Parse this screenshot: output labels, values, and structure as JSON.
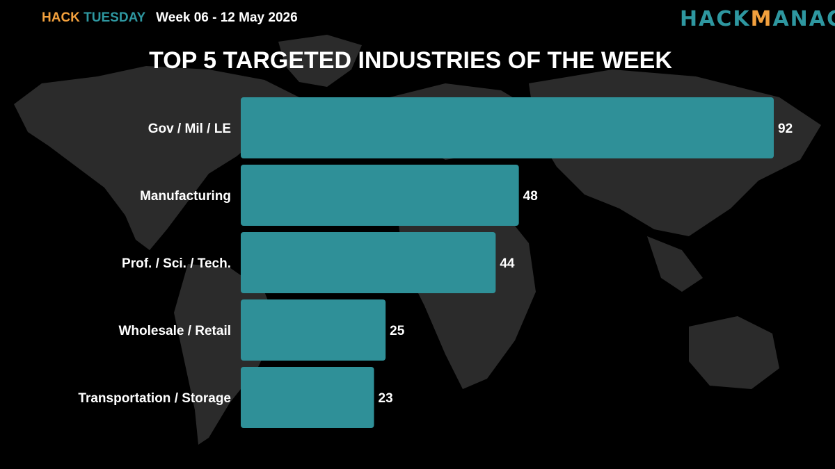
{
  "header": {
    "brand_part1": "HACK",
    "brand_part2": "TUESDAY",
    "week": "Week 06 - 12 May 2026",
    "logo_part1": "HACK",
    "logo_part2": "M",
    "logo_part3": "ANAC"
  },
  "colors": {
    "background": "#000000",
    "map": "#2b2b2b",
    "bar": "#2f9098",
    "accent_orange": "#f2a03d",
    "accent_teal": "#2e97a0"
  },
  "chart_data": {
    "type": "bar",
    "orientation": "horizontal",
    "title": "TOP 5 TARGETED INDUSTRIES OF THE WEEK",
    "categories": [
      "Gov / Mil / LE",
      "Manufacturing",
      "Prof. / Sci. / Tech.",
      "Wholesale / Retail",
      "Transportation / Storage"
    ],
    "values": [
      92,
      48,
      44,
      25,
      23
    ],
    "value_labels": [
      "92",
      "48",
      "44",
      "25",
      "23"
    ],
    "xlim": [
      0,
      92
    ],
    "grid": false,
    "legend": "none"
  }
}
